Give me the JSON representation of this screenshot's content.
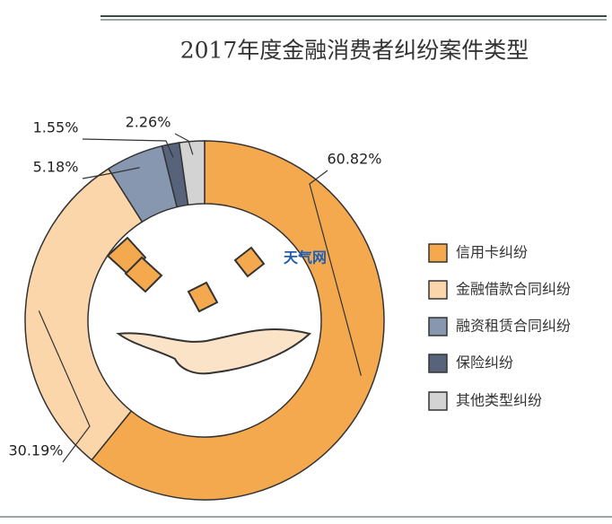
{
  "chart_data": {
    "type": "donut",
    "title": "2017年度金融消费者纠纷案件类型",
    "categories": [
      "信用卡纠纷",
      "金融借款合同纠纷",
      "融资租赁合同纠纷",
      "保险纠纷",
      "其他类型纠纷"
    ],
    "values": [
      60.82,
      30.19,
      5.18,
      1.55,
      2.26
    ],
    "value_labels": [
      "60.82%",
      "30.19%",
      "5.18%",
      "1.55%",
      "2.26%"
    ],
    "colors": [
      "#f5a94f",
      "#fbd6aa",
      "#8797af",
      "#56637b",
      "#d3d3d3"
    ],
    "legend": "right",
    "watermark": "天气网"
  }
}
